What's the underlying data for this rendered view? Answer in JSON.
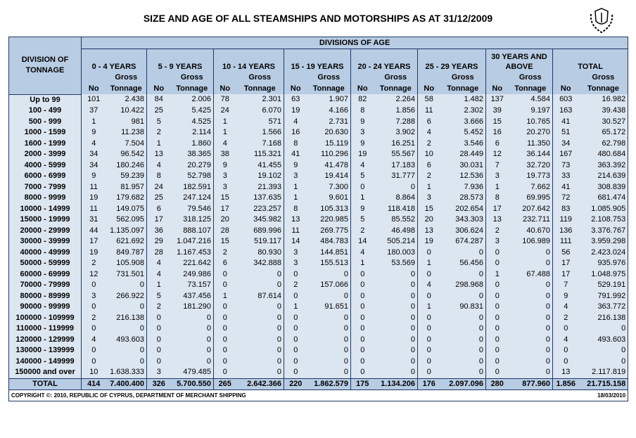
{
  "title": "SIZE AND AGE OF ALL STEAMSHIPS AND MOTORSHIPS AS AT 31/12/2009",
  "header": {
    "divisions_of_age": "DIVISIONS OF AGE",
    "division_label": "DIVISION OF TONNAGE",
    "groups": [
      "0 - 4 YEARS",
      "5 - 9 YEARS",
      "10 - 14 YEARS",
      "15 - 19 YEARS",
      "20 - 24 YEARS",
      "25 - 29 YEARS",
      "30 YEARS AND ABOVE",
      "TOTAL"
    ],
    "gross": "Gross",
    "no": "No",
    "tonnage": "Tonnage"
  },
  "rows": [
    [
      "Up to 99",
      "101",
      "2.438",
      "84",
      "2.006",
      "78",
      "2.301",
      "63",
      "1.907",
      "82",
      "2.264",
      "58",
      "1.482",
      "137",
      "4.584",
      "603",
      "16.982"
    ],
    [
      "100 - 499",
      "37",
      "10.422",
      "25",
      "5.425",
      "24",
      "6.070",
      "19",
      "4.166",
      "8",
      "1.856",
      "11",
      "2.302",
      "39",
      "9.197",
      "163",
      "39.438"
    ],
    [
      "500 - 999",
      "1",
      "981",
      "5",
      "4.525",
      "1",
      "571",
      "4",
      "2.731",
      "9",
      "7.288",
      "6",
      "3.666",
      "15",
      "10.765",
      "41",
      "30.527"
    ],
    [
      "1000 - 1599",
      "9",
      "11.238",
      "2",
      "2.114",
      "1",
      "1.566",
      "16",
      "20.630",
      "3",
      "3.902",
      "4",
      "5.452",
      "16",
      "20.270",
      "51",
      "65.172"
    ],
    [
      "1600 - 1999",
      "4",
      "7.504",
      "1",
      "1.860",
      "4",
      "7.168",
      "8",
      "15.119",
      "9",
      "16.251",
      "2",
      "3.546",
      "6",
      "11.350",
      "34",
      "62.798"
    ],
    [
      "2000 - 3999",
      "34",
      "96.542",
      "13",
      "38.365",
      "38",
      "115.321",
      "41",
      "110.296",
      "19",
      "55.567",
      "10",
      "28.449",
      "12",
      "36.144",
      "167",
      "480.684"
    ],
    [
      "4000 - 5999",
      "34",
      "180.246",
      "4",
      "20.279",
      "9",
      "41.455",
      "9",
      "41.478",
      "4",
      "17.183",
      "6",
      "30.031",
      "7",
      "32.720",
      "73",
      "363.392"
    ],
    [
      "6000 - 6999",
      "9",
      "59.239",
      "8",
      "52.798",
      "3",
      "19.102",
      "3",
      "19.414",
      "5",
      "31.777",
      "2",
      "12.536",
      "3",
      "19.773",
      "33",
      "214.639"
    ],
    [
      "7000 - 7999",
      "11",
      "81.957",
      "24",
      "182.591",
      "3",
      "21.393",
      "1",
      "7.300",
      "0",
      "0",
      "1",
      "7.936",
      "1",
      "7.662",
      "41",
      "308.839"
    ],
    [
      "8000 - 9999",
      "19",
      "179.682",
      "25",
      "247.124",
      "15",
      "137.635",
      "1",
      "9.601",
      "1",
      "8.864",
      "3",
      "28.573",
      "8",
      "69.995",
      "72",
      "681.474"
    ],
    [
      "10000 - 14999",
      "11",
      "149.075",
      "6",
      "79.546",
      "17",
      "223.257",
      "8",
      "105.313",
      "9",
      "118.418",
      "15",
      "202.654",
      "17",
      "207.642",
      "83",
      "1.085.905"
    ],
    [
      "15000 - 19999",
      "31",
      "562.095",
      "17",
      "318.125",
      "20",
      "345.982",
      "13",
      "220.985",
      "5",
      "85.552",
      "20",
      "343.303",
      "13",
      "232.711",
      "119",
      "2.108.753"
    ],
    [
      "20000 - 29999",
      "44",
      "1.135.097",
      "36",
      "888.107",
      "28",
      "689.996",
      "11",
      "269.775",
      "2",
      "46.498",
      "13",
      "306.624",
      "2",
      "40.670",
      "136",
      "3.376.767"
    ],
    [
      "30000 - 39999",
      "17",
      "621.692",
      "29",
      "1.047.216",
      "15",
      "519.117",
      "14",
      "484.783",
      "14",
      "505.214",
      "19",
      "674.287",
      "3",
      "106.989",
      "111",
      "3.959.298"
    ],
    [
      "40000 - 49999",
      "19",
      "849.787",
      "28",
      "1.167.453",
      "2",
      "80.930",
      "3",
      "144.851",
      "4",
      "180.003",
      "0",
      "0",
      "0",
      "0",
      "56",
      "2.423.024"
    ],
    [
      "50000 - 59999",
      "2",
      "105.908",
      "4",
      "221.642",
      "6",
      "342.888",
      "3",
      "155.513",
      "1",
      "53.569",
      "1",
      "56.456",
      "0",
      "0",
      "17",
      "935.976"
    ],
    [
      "60000 - 69999",
      "12",
      "731.501",
      "4",
      "249.986",
      "0",
      "0",
      "0",
      "0",
      "0",
      "0",
      "0",
      "0",
      "1",
      "67.488",
      "17",
      "1.048.975"
    ],
    [
      "70000 - 79999",
      "0",
      "0",
      "1",
      "73.157",
      "0",
      "0",
      "2",
      "157.066",
      "0",
      "0",
      "4",
      "298.968",
      "0",
      "0",
      "7",
      "529.191"
    ],
    [
      "80000 - 89999",
      "3",
      "266.922",
      "5",
      "437.456",
      "1",
      "87.614",
      "0",
      "0",
      "0",
      "0",
      "0",
      "0",
      "0",
      "0",
      "9",
      "791.992"
    ],
    [
      "90000 - 99999",
      "0",
      "0",
      "2",
      "181.290",
      "0",
      "0",
      "1",
      "91.651",
      "0",
      "0",
      "1",
      "90.831",
      "0",
      "0",
      "4",
      "363.772"
    ],
    [
      "100000 - 109999",
      "2",
      "216.138",
      "0",
      "0",
      "0",
      "0",
      "0",
      "0",
      "0",
      "0",
      "0",
      "0",
      "0",
      "0",
      "2",
      "216.138"
    ],
    [
      "110000 - 119999",
      "0",
      "0",
      "0",
      "0",
      "0",
      "0",
      "0",
      "0",
      "0",
      "0",
      "0",
      "0",
      "0",
      "0",
      "0",
      "0"
    ],
    [
      "120000 - 129999",
      "4",
      "493.603",
      "0",
      "0",
      "0",
      "0",
      "0",
      "0",
      "0",
      "0",
      "0",
      "0",
      "0",
      "0",
      "4",
      "493.603"
    ],
    [
      "130000 - 139999",
      "0",
      "0",
      "0",
      "0",
      "0",
      "0",
      "0",
      "0",
      "0",
      "0",
      "0",
      "0",
      "0",
      "0",
      "0",
      "0"
    ],
    [
      "140000 - 149999",
      "0",
      "0",
      "0",
      "0",
      "0",
      "0",
      "0",
      "0",
      "0",
      "0",
      "0",
      "0",
      "0",
      "0",
      "0",
      "0"
    ],
    [
      "150000 and over",
      "10",
      "1.638.333",
      "3",
      "479.485",
      "0",
      "0",
      "0",
      "0",
      "0",
      "0",
      "0",
      "0",
      "0",
      "0",
      "13",
      "2.117.819"
    ]
  ],
  "total": [
    "TOTAL",
    "414",
    "7.400.400",
    "326",
    "5.700.550",
    "265",
    "2.642.366",
    "220",
    "1.862.579",
    "175",
    "1.134.206",
    "176",
    "2.097.096",
    "280",
    "877.960",
    "1.856",
    "21.715.158"
  ],
  "footer": {
    "copyright": "COPYRIGHT ©: 2010, REPUBLIC OF CYPRUS, DEPARTMENT OF MERCHANT SHIPPING",
    "date": "18/03/2010"
  }
}
